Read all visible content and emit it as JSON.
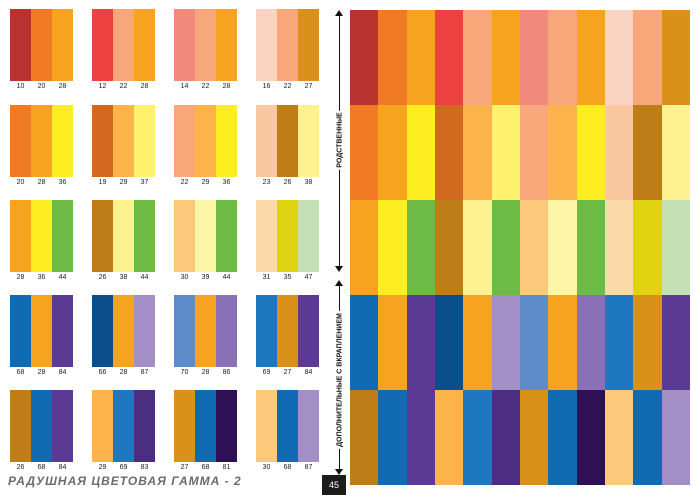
{
  "footer": {
    "title": "РАДУШНАЯ ЦВЕТОВАЯ ГАММА - 2",
    "page_number": "45"
  },
  "side_labels": {
    "upper": "РОДСТВЕННЫЕ",
    "lower": "ДОПОЛНИТЕЛЬНЫЕ С ВКРАПЛЕНИЕМ"
  },
  "swatch_rows": [
    [
      {
        "numbers": [
          "10",
          "20",
          "28"
        ],
        "colors": [
          "#b83230",
          "#f07b24",
          "#f6a31f"
        ]
      },
      {
        "numbers": [
          "12",
          "22",
          "28"
        ],
        "colors": [
          "#ed4040",
          "#f7a77a",
          "#f6a31f"
        ]
      },
      {
        "numbers": [
          "14",
          "22",
          "28"
        ],
        "colors": [
          "#f18a7c",
          "#f7a77a",
          "#f6a31f"
        ]
      },
      {
        "numbers": [
          "16",
          "22",
          "27"
        ],
        "colors": [
          "#fbd3c3",
          "#f7a77a",
          "#d99119"
        ]
      }
    ],
    [
      {
        "numbers": [
          "20",
          "28",
          "36"
        ],
        "colors": [
          "#f07b24",
          "#f6a31f",
          "#fcee21"
        ]
      },
      {
        "numbers": [
          "19",
          "29",
          "37"
        ],
        "colors": [
          "#d2691e",
          "#fbb34a",
          "#fff26e"
        ]
      },
      {
        "numbers": [
          "22",
          "29",
          "36"
        ],
        "colors": [
          "#f7a77a",
          "#fbb34a",
          "#fcee21"
        ]
      },
      {
        "numbers": [
          "23",
          "26",
          "38"
        ],
        "colors": [
          "#fac8a0",
          "#bf7d17",
          "#fdf28f"
        ]
      }
    ],
    [
      {
        "numbers": [
          "28",
          "36",
          "44"
        ],
        "colors": [
          "#f6a31f",
          "#fcee21",
          "#6dbb45"
        ]
      },
      {
        "numbers": [
          "26",
          "38",
          "44"
        ],
        "colors": [
          "#bf7d17",
          "#fdf28f",
          "#6dbb45"
        ]
      },
      {
        "numbers": [
          "30",
          "39",
          "44"
        ],
        "colors": [
          "#fcc97a",
          "#fcf6a6",
          "#6dbb45"
        ]
      },
      {
        "numbers": [
          "31",
          "35",
          "47"
        ],
        "colors": [
          "#fbd9a8",
          "#e0d311",
          "#c3e1b4"
        ]
      }
    ],
    [
      {
        "numbers": [
          "68",
          "28",
          "84"
        ],
        "colors": [
          "#106bb3",
          "#f6a31f",
          "#5b3a94"
        ]
      },
      {
        "numbers": [
          "66",
          "28",
          "87"
        ],
        "colors": [
          "#0a4f8c",
          "#f6a31f",
          "#a38fc6"
        ]
      },
      {
        "numbers": [
          "70",
          "28",
          "86"
        ],
        "colors": [
          "#5d8cc9",
          "#f6a31f",
          "#8a70b6"
        ]
      },
      {
        "numbers": [
          "69",
          "27",
          "84"
        ],
        "colors": [
          "#1d78c0",
          "#d99119",
          "#5b3a94"
        ]
      }
    ],
    [
      {
        "numbers": [
          "26",
          "68",
          "84"
        ],
        "colors": [
          "#bf7d17",
          "#106bb3",
          "#5b3a94"
        ]
      },
      {
        "numbers": [
          "29",
          "69",
          "83"
        ],
        "colors": [
          "#fbb34a",
          "#1d78c0",
          "#4b2e7f"
        ]
      },
      {
        "numbers": [
          "27",
          "68",
          "81"
        ],
        "colors": [
          "#d99119",
          "#106bb3",
          "#2e1155"
        ]
      },
      {
        "numbers": [
          "30",
          "68",
          "87"
        ],
        "colors": [
          "#fcc97a",
          "#106bb3",
          "#a38fc6"
        ]
      }
    ]
  ]
}
